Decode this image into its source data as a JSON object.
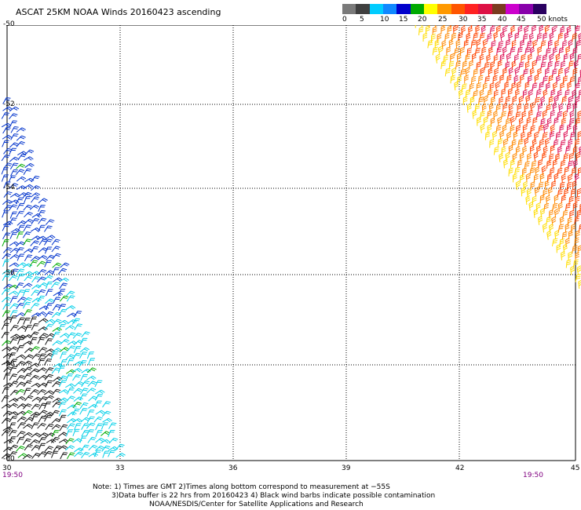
{
  "title": "ASCAT 25KM NOAA Winds 20160423 ascending",
  "speed_scale": {
    "labels": [
      "0",
      "5",
      "10",
      "15",
      "20",
      "25",
      "30",
      "35",
      "40",
      "45",
      "50 knots"
    ],
    "colors": [
      "#7a7a7a",
      "#3f3f3f",
      "#00ccff",
      "#1188ff",
      "#0000cc",
      "#00aa00",
      "#ffff00",
      "#ff9900",
      "#ff5500",
      "#ff2222",
      "#dd1144",
      "#7a3b1f",
      "#cc00cc",
      "#8800aa",
      "#2a0060"
    ]
  },
  "axes": {
    "lat_labels": [
      "-50",
      "-52",
      "-54",
      "-56",
      "-58",
      "-60"
    ],
    "lon_labels": [
      "30",
      "33",
      "36",
      "39",
      "42",
      "45"
    ]
  },
  "pass_times": {
    "left": "19:50",
    "right": "19:50"
  },
  "notes": {
    "line1": "Note: 1) Times are GMT 2)Times along bottom correspond to measurement at −55S",
    "line2": "3)Data buffer is 22 hrs from 20160423 4) Black wind barbs indicate possible contamination",
    "line3": "NOAA/NESDIS/Center for Satellite Applications and Research"
  },
  "colors": {
    "black": "#111111",
    "cyan": "#00cfe8",
    "blue": "#0033cc",
    "green": "#00aa00",
    "yellow": "#ffdd00",
    "orange": "#ff8800",
    "red_orange": "#ff4400",
    "crimson": "#dd1155"
  }
}
